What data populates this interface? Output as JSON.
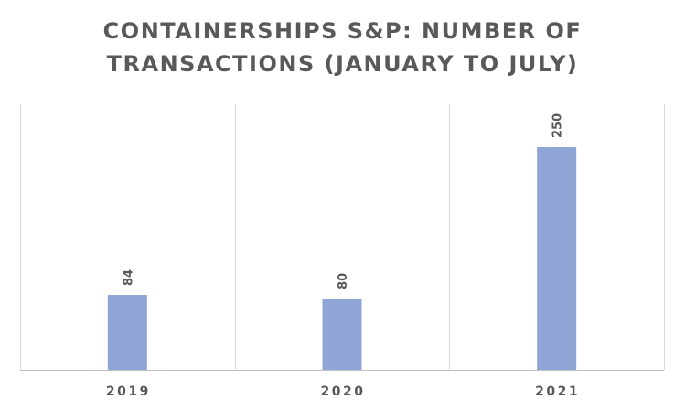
{
  "chart_data": {
    "type": "bar",
    "title_lines": [
      "CONTAINERSHIPS S&P: NUMBER OF",
      "TRANSACTIONS (JANUARY TO JULY)"
    ],
    "categories": [
      "2019",
      "2020",
      "2021"
    ],
    "values": [
      84,
      80,
      250
    ],
    "data_labels": [
      "84",
      "80",
      "250"
    ],
    "xlabel": "",
    "ylabel": "",
    "ylim": [
      0,
      250
    ],
    "grid": "vertical category separators",
    "legend": "none",
    "bar_color": "#8EA5D6",
    "grid_color": "#D9D9D9",
    "axis_color": "#BFBFBF",
    "text_color": "#595959"
  }
}
